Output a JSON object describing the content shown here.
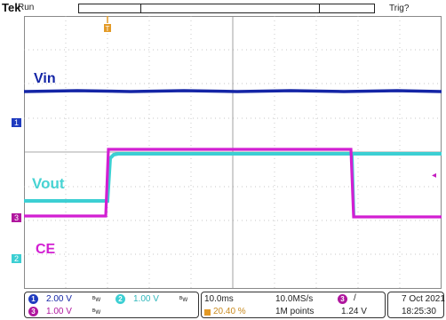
{
  "header": {
    "brand": "Tek",
    "run_state": "Run",
    "trigger_status": "Trig?"
  },
  "channels": {
    "ch1": {
      "marker": "1",
      "label": "Vin",
      "scale": "2.00 V",
      "color": "#1425a6"
    },
    "ch2": {
      "marker": "2",
      "label": "Vout",
      "scale": "1.00 V",
      "color": "#47d3d3"
    },
    "ch3": {
      "marker": "3",
      "label": "CE",
      "scale": "1.00 V",
      "color": "#d21fd2"
    },
    "bandwidth_icon": "bw-limit-icon"
  },
  "timebase": {
    "scale": "10.0ms",
    "sample_rate": "10.0MS/s",
    "trigger_position": "20.40 %",
    "record_length": "1M points"
  },
  "trigger": {
    "source": "3",
    "slope_icon": "rising-edge-icon",
    "slope": "/",
    "level": "1.24 V"
  },
  "datetime": {
    "date": "7 Oct 2021",
    "time": "18:25:30"
  },
  "colors": {
    "grid": "#9a9a9a",
    "accent_trigger": "#e39a26"
  }
}
